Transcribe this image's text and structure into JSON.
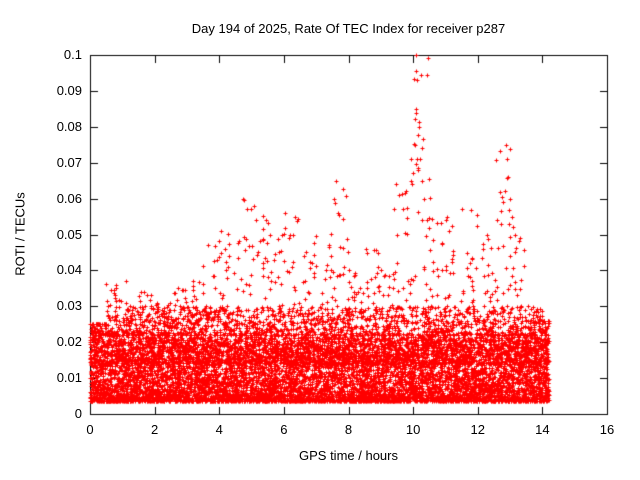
{
  "page": {
    "background": "#ffffff"
  },
  "chart_data": {
    "type": "scatter",
    "title": "Day 194 of 2025, Rate Of TEC Index for receiver p287",
    "xlabel": "GPS time / hours",
    "ylabel": "ROTI / TECUs",
    "xlim": [
      0,
      16
    ],
    "ylim": [
      0,
      0.1
    ],
    "xticks": {
      "values": [
        0,
        2,
        4,
        6,
        8,
        10,
        12,
        14,
        16
      ],
      "labels": [
        "0",
        "2",
        "4",
        "6",
        "8",
        "10",
        "12",
        "14",
        "16"
      ]
    },
    "yticks": {
      "values": [
        0,
        0.01,
        0.02,
        0.03,
        0.04,
        0.05,
        0.06,
        0.07,
        0.08,
        0.09,
        0.1
      ],
      "labels": [
        "0",
        "0.01",
        "0.02",
        "0.03",
        "0.04",
        "0.05",
        "0.06",
        "0.07",
        "0.08",
        "0.09",
        "0.1"
      ]
    },
    "marker": "plus",
    "color": "#ff0000",
    "axis_color": "#000000",
    "grid": false,
    "legend": "none",
    "data_extent": {
      "x_min": 0.0,
      "x_max": 14.2,
      "y_min": 0.003,
      "y_max": 0.1
    },
    "density_model": {
      "comment_visible_behavior": "dense red band of + markers 0.004-0.022 across 0-14.2 h, moderate density to 0.03, sparse spikes to envelope",
      "seed": 194,
      "bin_width": 0.5,
      "points_per_bin": 400,
      "bins_x_start": [
        0,
        0.5,
        1,
        1.5,
        2,
        2.5,
        3,
        3.5,
        4,
        4.5,
        5,
        5.5,
        6,
        6.5,
        7,
        7.5,
        8,
        8.5,
        9,
        9.5,
        10,
        10.5,
        11,
        11.5,
        12,
        12.5,
        13,
        13.5,
        14
      ],
      "bin_ymax": [
        0.025,
        0.037,
        0.031,
        0.034,
        0.031,
        0.035,
        0.037,
        0.047,
        0.052,
        0.06,
        0.058,
        0.05,
        0.056,
        0.05,
        0.052,
        0.065,
        0.04,
        0.046,
        0.04,
        0.065,
        0.1,
        0.062,
        0.055,
        0.057,
        0.05,
        0.075,
        0.052,
        0.03,
        0.026
      ]
    },
    "outliers": [
      [
        9.93,
        0.071
      ],
      [
        10.05,
        0.075
      ],
      [
        10.08,
        0.1
      ],
      [
        10.1,
        0.085
      ],
      [
        10.12,
        0.093
      ],
      [
        10.15,
        0.068
      ],
      [
        10.18,
        0.08
      ],
      [
        10.22,
        0.071
      ],
      [
        10.28,
        0.065
      ],
      [
        10.35,
        0.06
      ],
      [
        12.85,
        0.062
      ],
      [
        12.88,
        0.075
      ],
      [
        12.92,
        0.071
      ],
      [
        12.95,
        0.066
      ],
      [
        13.0,
        0.06
      ],
      [
        13.05,
        0.055
      ],
      [
        7.55,
        0.06
      ],
      [
        7.62,
        0.065
      ],
      [
        9.42,
        0.057
      ],
      [
        9.48,
        0.064
      ],
      [
        9.55,
        0.061
      ],
      [
        4.72,
        0.06
      ],
      [
        4.85,
        0.057
      ],
      [
        5.08,
        0.058
      ],
      [
        5.15,
        0.054
      ],
      [
        11.05,
        0.055
      ],
      [
        11.52,
        0.057
      ],
      [
        6.28,
        0.05
      ],
      [
        6.35,
        0.055
      ],
      [
        4.05,
        0.051
      ],
      [
        3.65,
        0.047
      ],
      [
        5.95,
        0.05
      ],
      [
        12.3,
        0.05
      ],
      [
        8.55,
        0.046
      ],
      [
        13.1,
        0.052
      ],
      [
        0.82,
        0.035
      ],
      [
        1.12,
        0.037
      ],
      [
        2.72,
        0.035
      ],
      [
        3.18,
        0.037
      ],
      [
        8.02,
        0.04
      ],
      [
        9.02,
        0.04
      ],
      [
        13.55,
        0.03
      ],
      [
        14.05,
        0.026
      ]
    ]
  }
}
